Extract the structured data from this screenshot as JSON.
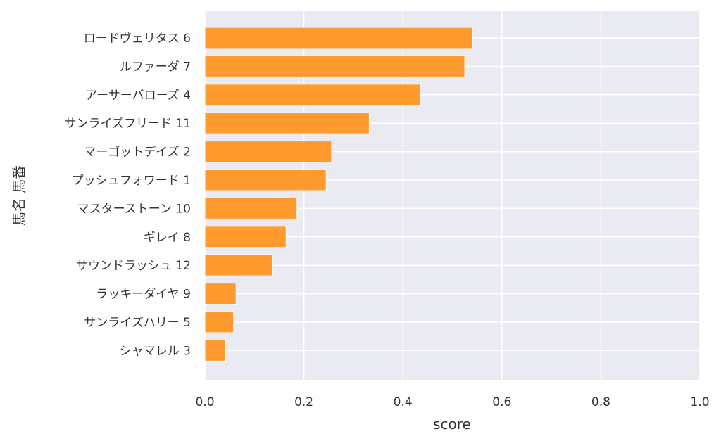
{
  "chart_data": {
    "type": "bar",
    "orientation": "horizontal",
    "categories": [
      "ロードヴェリタス 6",
      "ルファーダ 7",
      "アーサーバローズ 4",
      "サンライズフリード 11",
      "マーゴットデイズ 2",
      "プッシュフォワード 1",
      "マスターストーン 10",
      "ギレイ 8",
      "サウンドラッシュ 12",
      "ラッキーダイヤ 9",
      "サンライズハリー 5",
      "シャマレル 3"
    ],
    "values": [
      0.541,
      0.525,
      0.435,
      0.332,
      0.256,
      0.245,
      0.186,
      0.164,
      0.137,
      0.063,
      0.058,
      0.042
    ],
    "xlabel": "score",
    "ylabel": "馬名 馬番",
    "xlim": [
      0.0,
      1.0
    ],
    "xticks": [
      "0.0",
      "0.2",
      "0.4",
      "0.6",
      "0.8",
      "1.0"
    ],
    "grid": true,
    "bar_color": "#ff9a2e",
    "background_color": "#eaeaf2"
  }
}
